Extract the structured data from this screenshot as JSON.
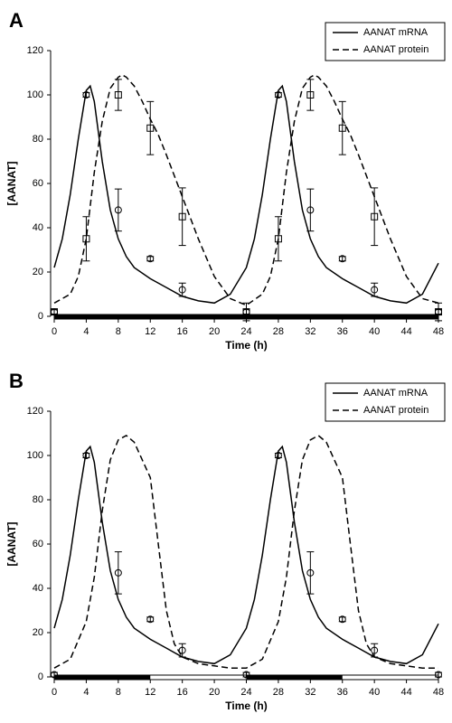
{
  "chart_data": [
    {
      "type": "line",
      "panel_label": "A",
      "xlabel": "Time (h)",
      "ylabel": "[AANAT]",
      "xlim": [
        0,
        48
      ],
      "xticks": [
        0,
        4,
        8,
        12,
        16,
        20,
        24,
        28,
        32,
        36,
        40,
        44,
        48
      ],
      "ylim": [
        0,
        120
      ],
      "yticks": [
        0,
        20,
        40,
        60,
        80,
        100,
        120
      ],
      "legend": "upper right",
      "dark_periods": [
        [
          0,
          48
        ]
      ],
      "series": [
        {
          "name": "AANAT mRNA",
          "color": "#000000",
          "dash": "solid",
          "x": [
            0,
            1,
            2,
            3,
            4,
            4.5,
            5,
            6,
            7,
            8,
            9,
            10,
            12,
            14,
            16,
            18,
            20,
            22,
            24,
            25,
            26,
            27,
            28,
            28.5,
            29,
            30,
            31,
            32,
            33,
            34,
            36,
            38,
            40,
            42,
            44,
            46,
            48
          ],
          "values": [
            22,
            35,
            55,
            80,
            102,
            104,
            97,
            70,
            48,
            35,
            27,
            22,
            17,
            13,
            9,
            7,
            6,
            10,
            22,
            35,
            55,
            80,
            102,
            104,
            97,
            70,
            48,
            35,
            27,
            22,
            17,
            13,
            9,
            7,
            6,
            10,
            24
          ]
        },
        {
          "name": "AANAT protein",
          "color": "#000000",
          "dash": "dashed",
          "x": [
            0,
            2,
            3,
            4,
            5,
            6,
            7,
            8,
            8.5,
            9,
            10,
            11,
            12,
            13,
            14,
            16,
            18,
            20,
            22,
            24,
            26,
            27,
            28,
            29,
            30,
            31,
            32,
            32.5,
            33,
            34,
            35,
            36,
            37,
            38,
            40,
            42,
            44,
            46,
            48
          ],
          "values": [
            6,
            10,
            18,
            35,
            65,
            88,
            103,
            108,
            109,
            108,
            104,
            97,
            89,
            82,
            73,
            54,
            35,
            18,
            8,
            5,
            10,
            18,
            35,
            65,
            88,
            103,
            108,
            109,
            108,
            104,
            97,
            89,
            82,
            73,
            54,
            35,
            18,
            8,
            6
          ]
        }
      ],
      "points": [
        {
          "marker": "circle",
          "color": "#000000",
          "x": [
            0,
            4,
            8,
            12,
            16,
            24,
            28,
            32,
            36,
            40,
            48
          ],
          "values": [
            2,
            100,
            48,
            26,
            12,
            2,
            100,
            48,
            26,
            12,
            2
          ],
          "errors": [
            1,
            1,
            9.5,
            1,
            3,
            1,
            1,
            9.5,
            1,
            3,
            1
          ]
        },
        {
          "marker": "square",
          "color": "#000000",
          "x": [
            0,
            4,
            8,
            12,
            16,
            24,
            28,
            32,
            36,
            40,
            48
          ],
          "values": [
            2,
            35,
            100,
            85,
            45,
            2,
            35,
            100,
            85,
            45,
            2
          ],
          "errors": [
            1,
            10,
            7,
            12,
            13,
            4,
            10,
            7,
            12,
            13,
            4
          ]
        }
      ]
    },
    {
      "type": "line",
      "panel_label": "B",
      "xlabel": "Time (h)",
      "ylabel": "[AANAT]",
      "xlim": [
        0,
        48
      ],
      "xticks": [
        0,
        4,
        8,
        12,
        16,
        20,
        24,
        28,
        32,
        36,
        40,
        44,
        48
      ],
      "ylim": [
        0,
        120
      ],
      "yticks": [
        0,
        20,
        40,
        60,
        80,
        100,
        120
      ],
      "legend": "upper right",
      "dark_periods": [
        [
          0,
          12
        ],
        [
          24,
          36
        ]
      ],
      "series": [
        {
          "name": "AANAT mRNA",
          "color": "#000000",
          "dash": "solid",
          "x": [
            0,
            1,
            2,
            3,
            4,
            4.5,
            5,
            6,
            7,
            8,
            9,
            10,
            12,
            14,
            16,
            18,
            20,
            22,
            24,
            25,
            26,
            27,
            28,
            28.5,
            29,
            30,
            31,
            32,
            33,
            34,
            36,
            38,
            40,
            42,
            44,
            46,
            48
          ],
          "values": [
            22,
            35,
            55,
            80,
            102,
            104,
            97,
            70,
            48,
            35,
            27,
            22,
            17,
            13,
            9,
            7,
            6,
            10,
            22,
            35,
            55,
            80,
            102,
            104,
            97,
            70,
            48,
            35,
            27,
            22,
            17,
            13,
            9,
            7,
            6,
            10,
            24
          ]
        },
        {
          "name": "AANAT protein",
          "color": "#000000",
          "dash": "dashed",
          "x": [
            0,
            2,
            4,
            5,
            6,
            7,
            8,
            9,
            10,
            11,
            12,
            13,
            14,
            15,
            16,
            18,
            20,
            22,
            24,
            26,
            28,
            29,
            30,
            31,
            32,
            33,
            34,
            35,
            36,
            37,
            38,
            39,
            40,
            42,
            44,
            46,
            48
          ],
          "values": [
            4,
            8,
            25,
            45,
            75,
            98,
            107,
            109,
            106,
            98,
            90,
            60,
            30,
            15,
            9,
            6,
            5,
            4,
            4,
            8,
            25,
            45,
            75,
            98,
            107,
            109,
            106,
            98,
            90,
            60,
            30,
            15,
            9,
            6,
            5,
            4,
            4
          ]
        }
      ],
      "points": [
        {
          "marker": "circle",
          "color": "#000000",
          "x": [
            0,
            4,
            8,
            12,
            16,
            24,
            28,
            32,
            36,
            40,
            48
          ],
          "values": [
            1,
            100,
            47,
            26,
            12,
            1,
            100,
            47,
            26,
            12,
            1
          ],
          "errors": [
            1,
            1,
            9.5,
            1,
            3,
            1,
            1,
            9.5,
            1,
            3,
            1
          ]
        }
      ]
    }
  ]
}
